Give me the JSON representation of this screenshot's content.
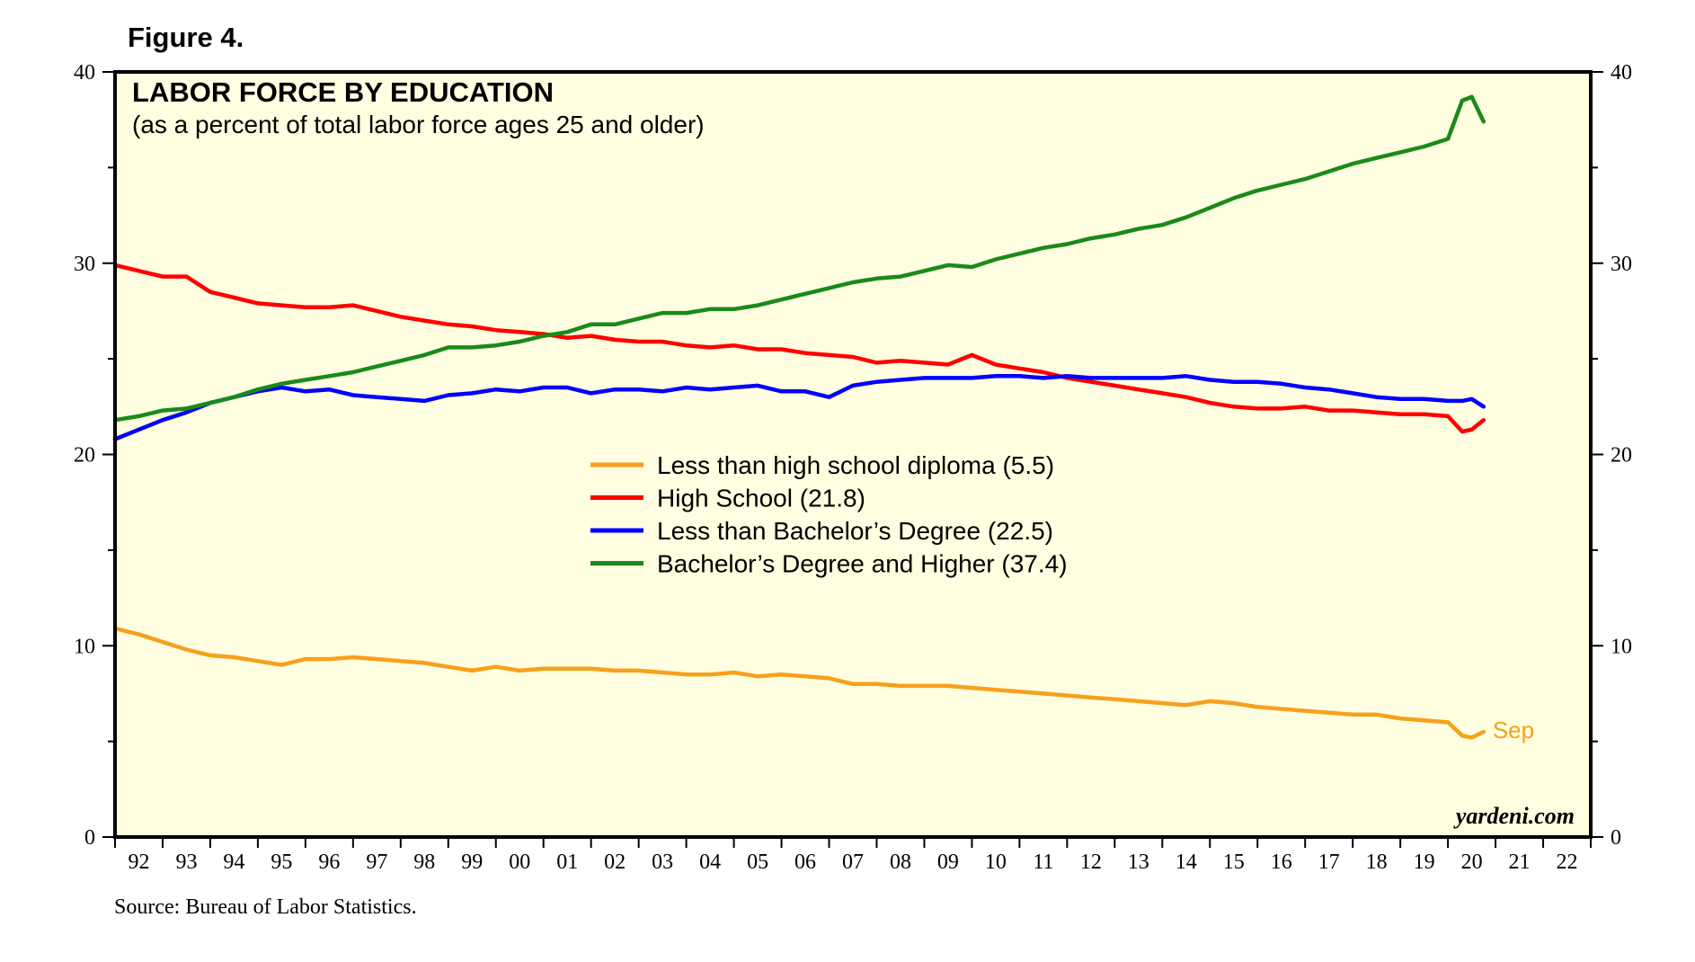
{
  "figure_label": "Figure 4.",
  "source": "Source: Bureau of Labor Statistics.",
  "watermark": "yardeni.com",
  "chart_data": {
    "type": "line",
    "title": "LABOR FORCE BY EDUCATION",
    "subtitle": "(as a percent of total labor force ages 25 and older)",
    "xlabel": "",
    "ylabel": "",
    "x_range": [
      1992.0,
      2023.0
    ],
    "ylim": [
      0,
      40
    ],
    "y_ticks": [
      0,
      10,
      20,
      30,
      40
    ],
    "x_tick_labels": [
      "92",
      "93",
      "94",
      "95",
      "96",
      "97",
      "98",
      "99",
      "00",
      "01",
      "02",
      "03",
      "04",
      "05",
      "06",
      "07",
      "08",
      "09",
      "10",
      "11",
      "12",
      "13",
      "14",
      "15",
      "16",
      "17",
      "18",
      "19",
      "20",
      "21",
      "22"
    ],
    "plot_background": "#fffee0",
    "grid": false,
    "legend_position": "center",
    "end_annotation": "Sep",
    "series": [
      {
        "name": "Less than high school diploma (5.5)",
        "color": "#f7a01b",
        "x": [
          1992.0,
          1992.5,
          1993.0,
          1993.5,
          1994.0,
          1994.5,
          1995.0,
          1995.5,
          1996.0,
          1996.5,
          1997.0,
          1997.5,
          1998.0,
          1998.5,
          1999.0,
          1999.5,
          2000.0,
          2000.5,
          2001.0,
          2001.5,
          2002.0,
          2002.5,
          2003.0,
          2003.5,
          2004.0,
          2004.5,
          2005.0,
          2005.5,
          2006.0,
          2006.5,
          2007.0,
          2007.5,
          2008.0,
          2008.5,
          2009.0,
          2009.5,
          2010.0,
          2010.5,
          2011.0,
          2011.5,
          2012.0,
          2012.5,
          2013.0,
          2013.5,
          2014.0,
          2014.5,
          2015.0,
          2015.5,
          2016.0,
          2016.5,
          2017.0,
          2017.5,
          2018.0,
          2018.5,
          2019.0,
          2019.5,
          2020.0,
          2020.3,
          2020.5,
          2020.75
        ],
        "y": [
          10.9,
          10.6,
          10.2,
          9.8,
          9.5,
          9.4,
          9.2,
          9.0,
          9.3,
          9.3,
          9.4,
          9.3,
          9.2,
          9.1,
          8.9,
          8.7,
          8.9,
          8.7,
          8.8,
          8.8,
          8.8,
          8.7,
          8.7,
          8.6,
          8.5,
          8.5,
          8.6,
          8.4,
          8.5,
          8.4,
          8.3,
          8.0,
          8.0,
          7.9,
          7.9,
          7.9,
          7.8,
          7.7,
          7.6,
          7.5,
          7.4,
          7.3,
          7.2,
          7.1,
          7.0,
          6.9,
          7.1,
          7.0,
          6.8,
          6.7,
          6.6,
          6.5,
          6.4,
          6.4,
          6.2,
          6.1,
          6.0,
          5.3,
          5.2,
          5.5
        ]
      },
      {
        "name": "High School (21.8)",
        "color": "#ff0000",
        "x": [
          1992.0,
          1992.5,
          1993.0,
          1993.5,
          1994.0,
          1994.5,
          1995.0,
          1995.5,
          1996.0,
          1996.5,
          1997.0,
          1997.5,
          1998.0,
          1998.5,
          1999.0,
          1999.5,
          2000.0,
          2000.5,
          2001.0,
          2001.5,
          2002.0,
          2002.5,
          2003.0,
          2003.5,
          2004.0,
          2004.5,
          2005.0,
          2005.5,
          2006.0,
          2006.5,
          2007.0,
          2007.5,
          2008.0,
          2008.5,
          2009.0,
          2009.5,
          2010.0,
          2010.5,
          2011.0,
          2011.5,
          2012.0,
          2012.5,
          2013.0,
          2013.5,
          2014.0,
          2014.5,
          2015.0,
          2015.5,
          2016.0,
          2016.5,
          2017.0,
          2017.5,
          2018.0,
          2018.5,
          2019.0,
          2019.5,
          2020.0,
          2020.3,
          2020.5,
          2020.75
        ],
        "y": [
          29.9,
          29.6,
          29.3,
          29.3,
          28.5,
          28.2,
          27.9,
          27.8,
          27.7,
          27.7,
          27.8,
          27.5,
          27.2,
          27.0,
          26.8,
          26.7,
          26.5,
          26.4,
          26.3,
          26.1,
          26.2,
          26.0,
          25.9,
          25.9,
          25.7,
          25.6,
          25.7,
          25.5,
          25.5,
          25.3,
          25.2,
          25.1,
          24.8,
          24.9,
          24.8,
          24.7,
          25.2,
          24.7,
          24.5,
          24.3,
          24.0,
          23.8,
          23.6,
          23.4,
          23.2,
          23.0,
          22.7,
          22.5,
          22.4,
          22.4,
          22.5,
          22.3,
          22.3,
          22.2,
          22.1,
          22.1,
          22.0,
          21.2,
          21.3,
          21.8
        ]
      },
      {
        "name": "Less than Bachelor’s Degree (22.5)",
        "color": "#0000ff",
        "x": [
          1992.0,
          1992.5,
          1993.0,
          1993.5,
          1994.0,
          1994.5,
          1995.0,
          1995.5,
          1996.0,
          1996.5,
          1997.0,
          1997.5,
          1998.0,
          1998.5,
          1999.0,
          1999.5,
          2000.0,
          2000.5,
          2001.0,
          2001.5,
          2002.0,
          2002.5,
          2003.0,
          2003.5,
          2004.0,
          2004.5,
          2005.0,
          2005.5,
          2006.0,
          2006.5,
          2007.0,
          2007.5,
          2008.0,
          2008.5,
          2009.0,
          2009.5,
          2010.0,
          2010.5,
          2011.0,
          2011.5,
          2012.0,
          2012.5,
          2013.0,
          2013.5,
          2014.0,
          2014.5,
          2015.0,
          2015.5,
          2016.0,
          2016.5,
          2017.0,
          2017.5,
          2018.0,
          2018.5,
          2019.0,
          2019.5,
          2020.0,
          2020.3,
          2020.5,
          2020.75
        ],
        "y": [
          20.8,
          21.3,
          21.8,
          22.2,
          22.7,
          23.0,
          23.3,
          23.5,
          23.3,
          23.4,
          23.1,
          23.0,
          22.9,
          22.8,
          23.1,
          23.2,
          23.4,
          23.3,
          23.5,
          23.5,
          23.2,
          23.4,
          23.4,
          23.3,
          23.5,
          23.4,
          23.5,
          23.6,
          23.3,
          23.3,
          23.0,
          23.6,
          23.8,
          23.9,
          24.0,
          24.0,
          24.0,
          24.1,
          24.1,
          24.0,
          24.1,
          24.0,
          24.0,
          24.0,
          24.0,
          24.1,
          23.9,
          23.8,
          23.8,
          23.7,
          23.5,
          23.4,
          23.2,
          23.0,
          22.9,
          22.9,
          22.8,
          22.8,
          22.9,
          22.5
        ]
      },
      {
        "name": "Bachelor’s Degree and Higher (37.4)",
        "color": "#1a8a1a",
        "x": [
          1992.0,
          1992.5,
          1993.0,
          1993.5,
          1994.0,
          1994.5,
          1995.0,
          1995.5,
          1996.0,
          1996.5,
          1997.0,
          1997.5,
          1998.0,
          1998.5,
          1999.0,
          1999.5,
          2000.0,
          2000.5,
          2001.0,
          2001.5,
          2002.0,
          2002.5,
          2003.0,
          2003.5,
          2004.0,
          2004.5,
          2005.0,
          2005.5,
          2006.0,
          2006.5,
          2007.0,
          2007.5,
          2008.0,
          2008.5,
          2009.0,
          2009.5,
          2010.0,
          2010.5,
          2011.0,
          2011.5,
          2012.0,
          2012.5,
          2013.0,
          2013.5,
          2014.0,
          2014.5,
          2015.0,
          2015.5,
          2016.0,
          2016.5,
          2017.0,
          2017.5,
          2018.0,
          2018.5,
          2019.0,
          2019.5,
          2020.0,
          2020.3,
          2020.5,
          2020.75
        ],
        "y": [
          21.8,
          22.0,
          22.3,
          22.4,
          22.7,
          23.0,
          23.4,
          23.7,
          23.9,
          24.1,
          24.3,
          24.6,
          24.9,
          25.2,
          25.6,
          25.6,
          25.7,
          25.9,
          26.2,
          26.4,
          26.8,
          26.8,
          27.1,
          27.4,
          27.4,
          27.6,
          27.6,
          27.8,
          28.1,
          28.4,
          28.7,
          29.0,
          29.2,
          29.3,
          29.6,
          29.9,
          29.8,
          30.2,
          30.5,
          30.8,
          31.0,
          31.3,
          31.5,
          31.8,
          32.0,
          32.4,
          32.9,
          33.4,
          33.8,
          34.1,
          34.4,
          34.8,
          35.2,
          35.5,
          35.8,
          36.1,
          36.5,
          38.5,
          38.7,
          37.4
        ]
      }
    ]
  }
}
